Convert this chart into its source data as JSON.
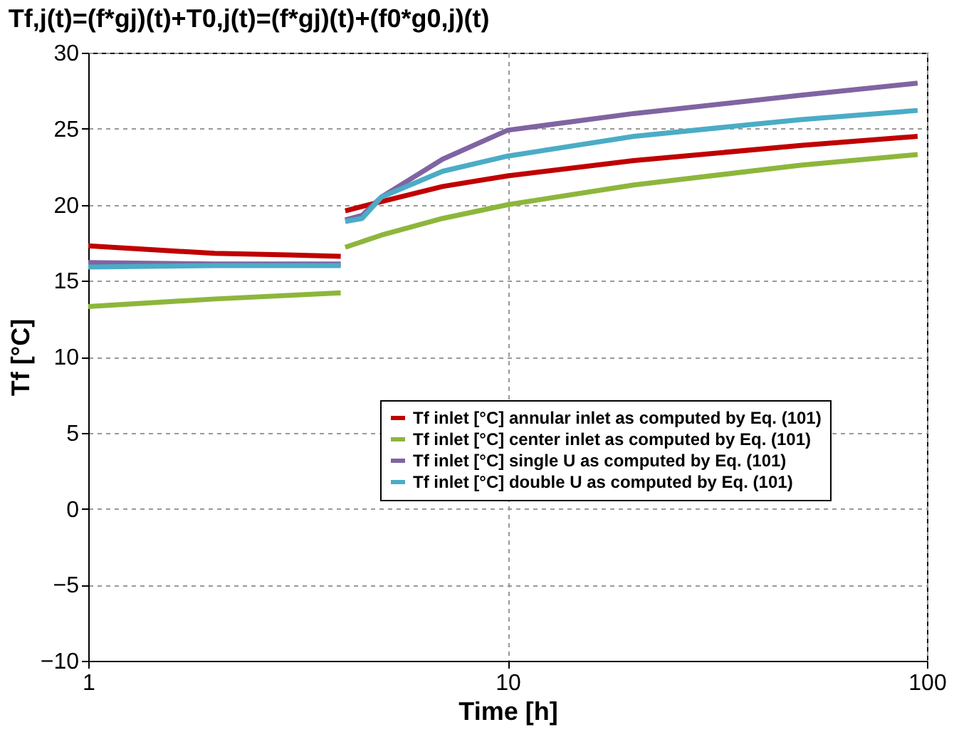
{
  "chart_data": {
    "type": "line",
    "title": "Tf,j(t)=(f*gj)(t)+T0,j(t)=(f*gj)(t)+(f0*g0,j)(t)",
    "xlabel": "Time [h]",
    "ylabel": "Tf [°C]",
    "log": "x",
    "xlim": [
      1,
      100
    ],
    "xticks": [
      1,
      10,
      100
    ],
    "ylim": [
      -10,
      30
    ],
    "yticks": [
      -10,
      -5,
      0,
      5,
      10,
      15,
      20,
      25,
      30
    ],
    "grid": true,
    "legend": "bottom right",
    "marker": "none",
    "line_style": "solid",
    "series": [
      {
        "name": "Tf inlet [°C] annular inlet as computed by Eq. (101)",
        "color": "#c00000",
        "x": [
          1,
          1.5,
          2,
          3,
          4.0,
          4.05,
          4.1,
          5,
          7,
          10,
          20,
          50,
          95
        ],
        "values": [
          17.3,
          17.0,
          16.8,
          16.7,
          16.6,
          null,
          19.6,
          20.2,
          21.2,
          21.9,
          22.9,
          23.9,
          24.5
        ]
      },
      {
        "name": "Tf inlet [°C] center inlet as computed by Eq. (101)",
        "color": "#8db63c",
        "x": [
          1,
          2,
          4.0,
          4.05,
          4.1,
          5,
          7,
          10,
          20,
          50,
          95
        ],
        "values": [
          13.3,
          13.8,
          14.2,
          null,
          17.2,
          18.0,
          19.1,
          20.0,
          21.3,
          22.6,
          23.3
        ]
      },
      {
        "name": "Tf inlet [°C] single U as computed by Eq. (101)",
        "color": "#8064a2",
        "x": [
          1,
          2,
          4.0,
          4.05,
          4.1,
          4.5,
          5,
          7,
          10,
          20,
          50,
          95
        ],
        "values": [
          16.2,
          16.1,
          16.1,
          null,
          19.0,
          19.3,
          20.5,
          23.0,
          24.9,
          26.0,
          27.2,
          28.0
        ]
      },
      {
        "name": "Tf inlet [°C] double U as computed by Eq. (101)",
        "color": "#4bacc6",
        "x": [
          1,
          2,
          4.0,
          4.05,
          4.1,
          4.5,
          5,
          7,
          10,
          20,
          50,
          95
        ],
        "values": [
          15.9,
          16.0,
          16.0,
          null,
          18.9,
          19.1,
          20.5,
          22.2,
          23.2,
          24.5,
          25.6,
          26.2
        ]
      }
    ]
  }
}
